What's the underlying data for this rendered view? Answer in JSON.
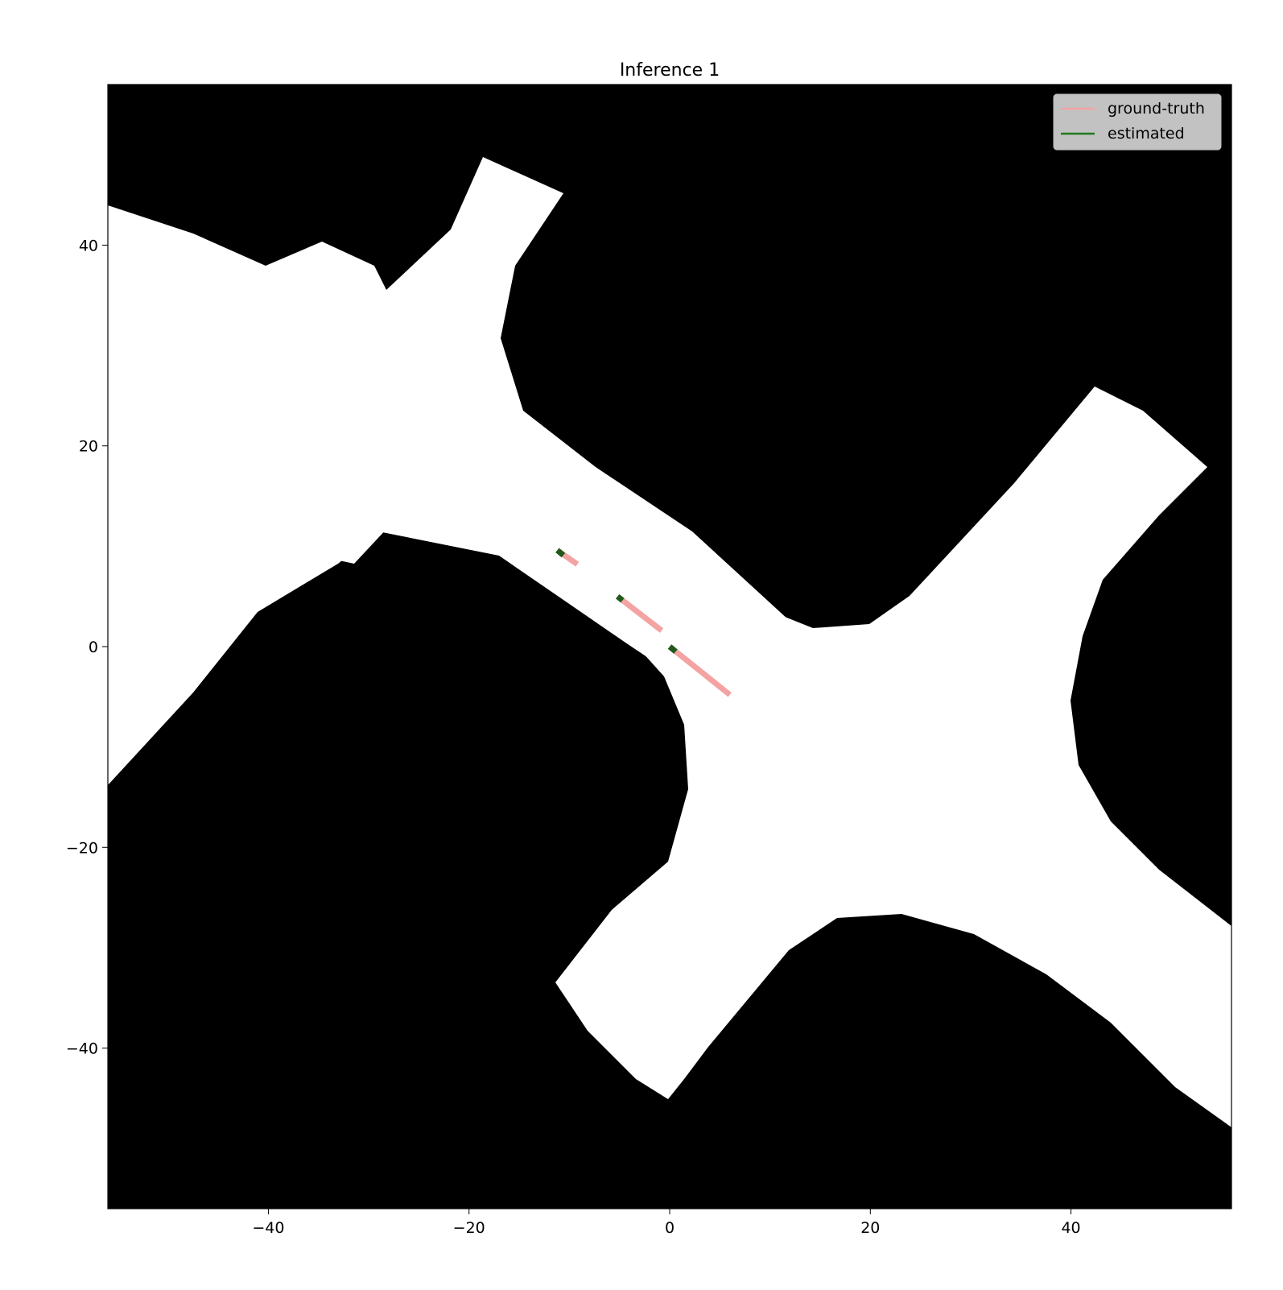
{
  "chart_data": {
    "type": "line",
    "title": "Inference 1",
    "xlabel": "",
    "ylabel": "",
    "xlim": [
      -56,
      56
    ],
    "ylim": [
      -56,
      56
    ],
    "xticks": [
      -40,
      -20,
      0,
      20,
      40
    ],
    "yticks": [
      40,
      20,
      0,
      -20,
      -40
    ],
    "xtick_labels": [
      "−40",
      "−20",
      "0",
      "20",
      "40"
    ],
    "ytick_labels": [
      "40",
      "20",
      "0",
      "−20",
      "−40"
    ],
    "grid": false,
    "legend_position": "top-right",
    "background": "occupancy map: black = occupied, white = drivable road area (four-way junction with diagonal roads)",
    "series": [
      {
        "name": "ground-truth",
        "color": "#f4a3a3",
        "segments": [
          [
            [
              -11.2,
              9.6
            ],
            [
              -9.2,
              8.2
            ]
          ],
          [
            [
              -5.2,
              5.0
            ],
            [
              -0.8,
              1.6
            ]
          ],
          [
            [
              0.0,
              0.0
            ],
            [
              6.0,
              -4.8
            ]
          ]
        ]
      },
      {
        "name": "estimated",
        "color": "#1f5a1a",
        "segments": [
          [
            [
              -11.2,
              9.6
            ],
            [
              -10.6,
              9.1
            ]
          ],
          [
            [
              -5.2,
              5.0
            ],
            [
              -4.7,
              4.6
            ]
          ],
          [
            [
              0.0,
              0.0
            ],
            [
              0.6,
              -0.5
            ]
          ]
        ]
      }
    ],
    "legend": [
      {
        "label": "ground-truth",
        "color": "#f4a3a3"
      },
      {
        "label": "estimated",
        "color": "#1f7a1f"
      }
    ]
  }
}
